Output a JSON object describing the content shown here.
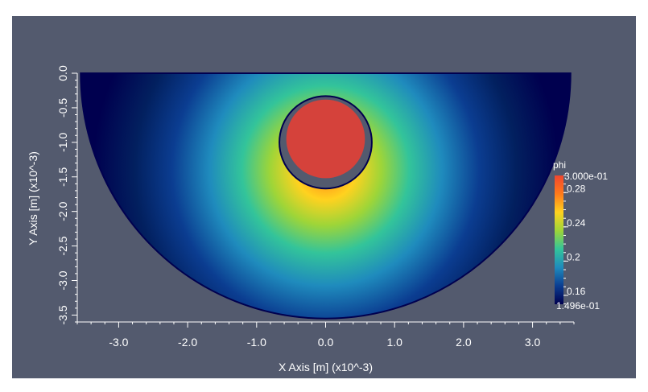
{
  "chart_data": {
    "type": "heatmap",
    "title": "",
    "xlabel": "X Axis [m] (x10^-3)",
    "ylabel": "Y Axis [m] (x10^-3)",
    "xlim": [
      -3.6,
      3.6
    ],
    "ylim": [
      -3.6,
      0.0
    ],
    "x_ticks": [
      -3.0,
      -2.0,
      -1.0,
      0.0,
      1.0,
      2.0,
      3.0
    ],
    "x_tick_labels": [
      "-3.0",
      "-2.0",
      "-1.0",
      "0.0",
      "1.0",
      "2.0",
      "3.0"
    ],
    "y_ticks": [
      0.0,
      -0.5,
      -1.0,
      -1.5,
      -2.0,
      -2.5,
      -3.0,
      -3.5
    ],
    "y_tick_labels": [
      "0.0",
      "-0.5",
      "-1.0",
      "-1.5",
      "-2.0",
      "-2.5",
      "-3.0",
      "-3.5"
    ],
    "field": {
      "name": "phi",
      "min": 0.1496,
      "max": 0.3,
      "min_label": "1.496e-01",
      "max_label": "3.000e-01",
      "color_ticks": [
        0.16,
        0.2,
        0.24,
        0.28
      ],
      "color_tick_labels": [
        "0.16",
        "0.2",
        "0.24",
        "0.28"
      ]
    },
    "domain": {
      "bowl_radius": 3.55,
      "cavity_center": [
        0.0,
        -1.0
      ],
      "cavity_radius": 0.67,
      "particle_center": [
        0.0,
        -0.95
      ],
      "particle_radius": 0.57
    },
    "legend_position": "right",
    "grid": false,
    "colors": {
      "background": "#535a6e",
      "axes": "#ffffff",
      "particle": "#d5423b",
      "colormap": [
        "#00004f",
        "#0b3d91",
        "#1f8bbd",
        "#33c49a",
        "#9ed538",
        "#ffd21f",
        "#ff7a1a",
        "#f0462f"
      ]
    }
  }
}
